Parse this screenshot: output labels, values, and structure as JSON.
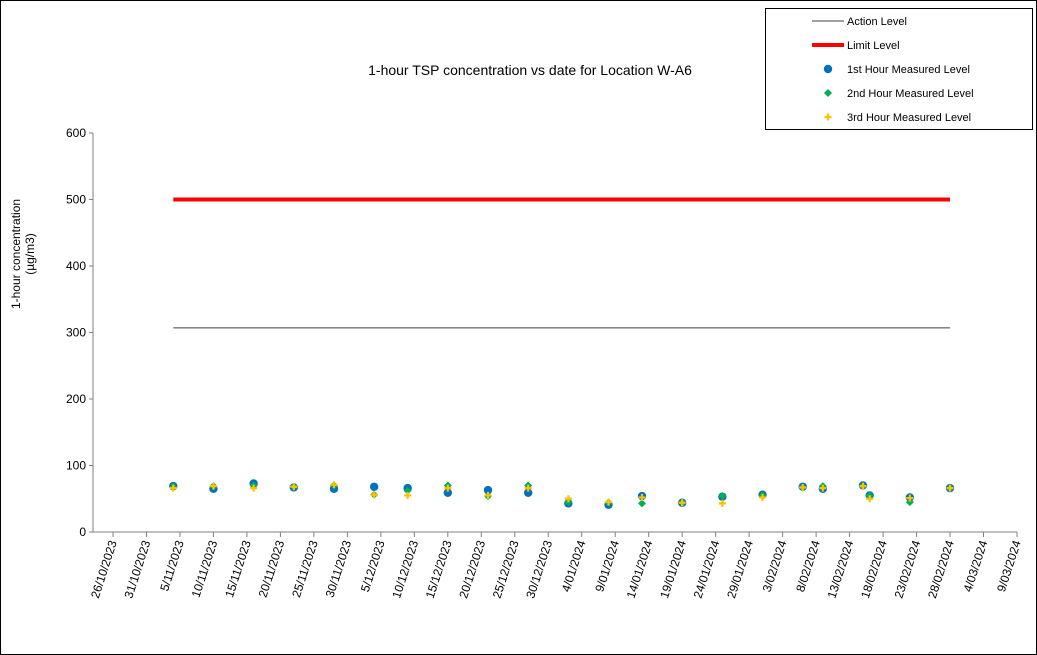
{
  "chart_data": {
    "type": "scatter",
    "title": "1-hour TSP concentration vs date for Location  W-A6",
    "ylabel": "1-hour concentration (µg/m3)",
    "ylabel_lines": [
      "1-hour concentration",
      "(µg/m3)"
    ],
    "xlabel": "",
    "ylim": [
      0,
      600
    ],
    "yticks": [
      0,
      100,
      200,
      300,
      400,
      500,
      600
    ],
    "xlim": [
      "2023-10-26",
      "2024-03-09"
    ],
    "xticks": [
      "26/10/2023",
      "31/10/2023",
      "5/11/2023",
      "10/11/2023",
      "15/11/2023",
      "20/11/2023",
      "25/11/2023",
      "30/11/2023",
      "5/12/2023",
      "10/12/2023",
      "15/12/2023",
      "20/12/2023",
      "25/12/2023",
      "30/12/2023",
      "4/01/2024",
      "9/01/2024",
      "14/01/2024",
      "19/01/2024",
      "24/01/2024",
      "29/01/2024",
      "3/02/2024",
      "8/02/2024",
      "13/02/2024",
      "18/02/2024",
      "23/02/2024",
      "28/02/2024",
      "4/03/2024",
      "9/03/2024"
    ],
    "grid": false,
    "legend_placement": "top-right",
    "dates": [
      "2023-11-04",
      "2023-11-10",
      "2023-11-16",
      "2023-11-22",
      "2023-11-28",
      "2023-12-04",
      "2023-12-09",
      "2023-12-15",
      "2023-12-21",
      "2023-12-27",
      "2024-01-02",
      "2024-01-08",
      "2024-01-13",
      "2024-01-19",
      "2024-01-25",
      "2024-01-31",
      "2024-02-06",
      "2024-02-09",
      "2024-02-15",
      "2024-02-16",
      "2024-02-22",
      "2024-02-28"
    ],
    "lines": [
      {
        "name": "Action Level",
        "value": 307,
        "color": "#404040",
        "from": "2023-11-04",
        "to": "2024-02-28"
      },
      {
        "name": "Limit Level",
        "value": 500,
        "color": "#ff0000",
        "from": "2023-11-04",
        "to": "2024-02-28"
      }
    ],
    "series": [
      {
        "name": "1st Hour Measured Level",
        "color": "#0070c0",
        "marker": "circle",
        "values": [
          69,
          65,
          73,
          67,
          65,
          68,
          66,
          59,
          63,
          59,
          43,
          41,
          54,
          44,
          53,
          56,
          68,
          65,
          70,
          55,
          52,
          66
        ]
      },
      {
        "name": "2nd Hour Measured Level",
        "color": "#00b050",
        "marker": "diamond",
        "values": [
          68,
          69,
          70,
          68,
          70,
          56,
          62,
          70,
          54,
          70,
          45,
          44,
          43,
          44,
          54,
          55,
          67,
          69,
          69,
          55,
          45,
          66
        ]
      },
      {
        "name": "3rd Hour Measured Level",
        "color": "#ffc000",
        "marker": "plus",
        "values": [
          66,
          69,
          66,
          68,
          71,
          56,
          55,
          66,
          55,
          66,
          50,
          45,
          52,
          44,
          43,
          52,
          67,
          66,
          69,
          50,
          51,
          66
        ]
      }
    ]
  }
}
